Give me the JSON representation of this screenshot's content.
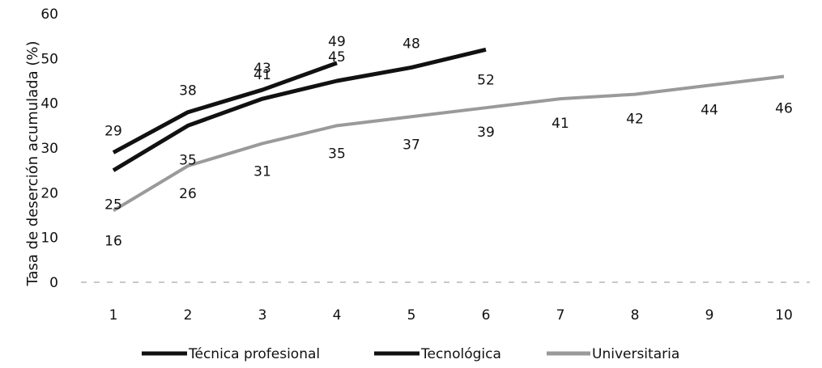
{
  "chart_data": {
    "type": "line",
    "title": "",
    "xlabel": "",
    "ylabel": "Tasa de deserción acumulada (%)",
    "ylim": [
      0,
      60
    ],
    "yticks": [
      0,
      10,
      20,
      30,
      40,
      50,
      60
    ],
    "x": [
      1,
      2,
      3,
      4,
      5,
      6,
      7,
      8,
      9,
      10
    ],
    "grid": false,
    "legend_position": "bottom",
    "series": [
      {
        "name": "Técnica profesional",
        "color": "#111111",
        "x": [
          1,
          2,
          3,
          4
        ],
        "values": [
          29,
          38,
          43,
          49
        ],
        "labels": [
          "29",
          "38",
          "43",
          "49"
        ]
      },
      {
        "name": "Tecnológica",
        "color": "#111111",
        "x": [
          1,
          2,
          3,
          4,
          5,
          6
        ],
        "values": [
          25,
          35,
          41,
          45,
          48,
          52
        ],
        "labels": [
          "25",
          "35",
          "41",
          "45",
          "48",
          "52"
        ]
      },
      {
        "name": "Universitaria",
        "color": "#9a9a9a",
        "x": [
          1,
          2,
          3,
          4,
          5,
          6,
          7,
          8,
          9,
          10
        ],
        "values": [
          16,
          26,
          31,
          35,
          37,
          39,
          41,
          42,
          44,
          46
        ],
        "labels": [
          "16",
          "26",
          "31",
          "35",
          "37",
          "39",
          "41",
          "42",
          "44",
          "46"
        ]
      }
    ]
  }
}
